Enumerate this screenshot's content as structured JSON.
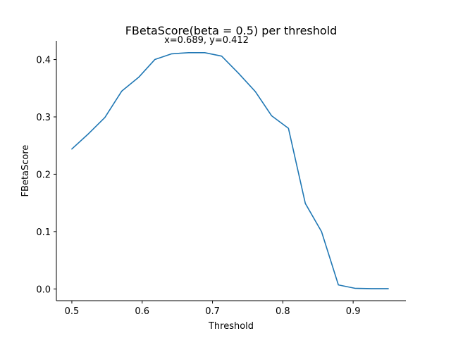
{
  "chart_data": {
    "type": "line",
    "title": "FBetaScore(beta = 0.5) per threshold",
    "subtitle": "x=0.689, y=0.412",
    "xlabel": "Threshold",
    "ylabel": "FBetaScore",
    "xlim": [
      0.478,
      0.975
    ],
    "ylim": [
      -0.0205,
      0.4326
    ],
    "xticks": [
      0.5,
      0.6,
      0.7,
      0.8,
      0.9
    ],
    "xtick_labels": [
      "0.5",
      "0.6",
      "0.7",
      "0.8",
      "0.9"
    ],
    "yticks": [
      0.0,
      0.1,
      0.2,
      0.3,
      0.4
    ],
    "ytick_labels": [
      "0.0",
      "0.1",
      "0.2",
      "0.3",
      "0.4"
    ],
    "grid": false,
    "line_color": "#1f77b4",
    "x": [
      0.5,
      0.524,
      0.547,
      0.571,
      0.595,
      0.618,
      0.642,
      0.666,
      0.689,
      0.713,
      0.737,
      0.761,
      0.784,
      0.808,
      0.832,
      0.855,
      0.879,
      0.903,
      0.926,
      0.95
    ],
    "y": [
      0.244,
      0.271,
      0.299,
      0.345,
      0.369,
      0.4,
      0.41,
      0.412,
      0.412,
      0.406,
      0.376,
      0.344,
      0.302,
      0.28,
      0.149,
      0.1,
      0.007,
      0.001,
      0.0005,
      0.0005
    ]
  }
}
